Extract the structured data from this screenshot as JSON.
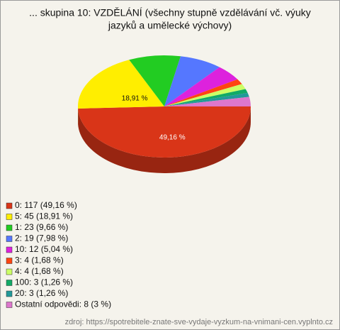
{
  "chart_data": {
    "type": "pie",
    "title": [
      "... skupina 10: VZDĚLÁNÍ (všechny stupně vzdělávání vč. výuky",
      "jazyků a umělecké výchovy)"
    ],
    "categories": [
      "0: 117 (49,16 %)",
      "5: 45 (18,91 %)",
      "1: 23 (9,66 %)",
      "2: 19 (7,98 %)",
      "10: 12 (5,04 %)",
      "3: 4 (1,68 %)",
      "4: 4 (1,68 %)",
      "100: 3 (1,26 %)",
      "20: 3 (1,26 %)",
      "Ostatní odpovědi: 8 (3 %)"
    ],
    "values": [
      49.16,
      18.91,
      9.66,
      7.98,
      5.04,
      1.68,
      1.68,
      1.26,
      1.26,
      3
    ],
    "value_labels": [
      "49,16 %",
      "18,91 %",
      null,
      null,
      null,
      null,
      null,
      null,
      null,
      null
    ],
    "colors": [
      "#d93518",
      "#ffee00",
      "#22cc22",
      "#5577ff",
      "#dd22dd",
      "#ff4411",
      "#ccff66",
      "#11aa66",
      "#229999",
      "#dd77cc"
    ],
    "source": "zdroj: https://spotrebitele-znate-sve-vydaje-vyzkum-na-vnimani-cen.vyplnto.cz"
  }
}
